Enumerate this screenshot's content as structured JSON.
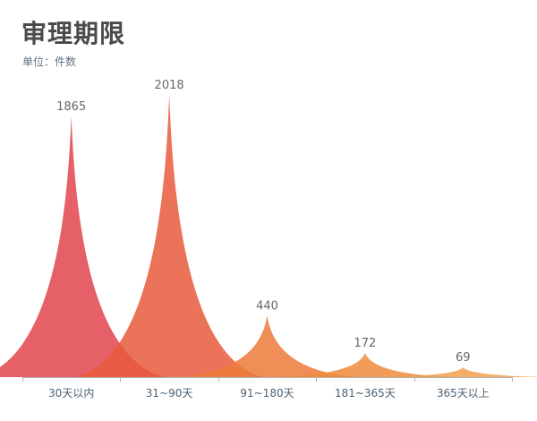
{
  "chart_data": {
    "type": "pictorial-bar",
    "title": "审理期限",
    "subtitle": "单位：件数",
    "categories": [
      "30天以内",
      "31~90天",
      "91~180天",
      "181~365天",
      "365天以上"
    ],
    "values": [
      1865,
      2018,
      440,
      172,
      69
    ],
    "ylim": [
      0,
      2018
    ],
    "grid": false,
    "legend": "none",
    "colors": [
      "#e2444c",
      "#e85a3c",
      "#ec7a3a",
      "#ee8c3c",
      "#f2a04c"
    ],
    "axis_color": "#b0b0b0"
  }
}
